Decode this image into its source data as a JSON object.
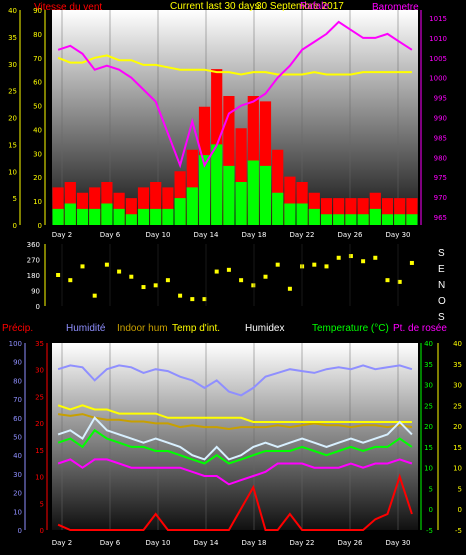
{
  "header": {
    "left": "Vitesse du vent",
    "center_a": "Current last 30 days",
    "center_b": "30 Septembre 2017",
    "center_c": "Rafale",
    "right": "Barometre"
  },
  "compass": [
    "S",
    "E",
    "N",
    "O",
    "S"
  ],
  "bottom_labels": {
    "precip": "Précip.",
    "humidite": "Humidité",
    "indoor_hum": "Indoor hum",
    "temp_int": "Temp d'int.",
    "humidex": "Humidex",
    "temperature": "Temperature (°C)",
    "dewpoint": "Pt. de rosée"
  },
  "colors": {
    "wind": "#00ff00",
    "gust": "#ff0000",
    "baro": "#ff00ff",
    "temp": "#00ff00",
    "dew": "#ff00ff",
    "hum": "#8f8fff",
    "indoor_hum": "#c8a000",
    "indoor_temp": "#ffff00",
    "humidex": "#d8f0ff",
    "precip": "#ff0000",
    "dir": "#ffff00"
  },
  "chart_data": [
    {
      "type": "area",
      "x_ticks": [
        "Day 2",
        "Day 6",
        "Day 10",
        "Day 14",
        "Day 18",
        "Day 22",
        "Day 26",
        "Day 30"
      ],
      "left_axis": {
        "ticks": [
          "0",
          "5",
          "10",
          "15",
          "20",
          "25",
          "30",
          "35",
          "40"
        ],
        "ylim": [
          0,
          40
        ]
      },
      "middle_axis": {
        "ticks": [
          "0",
          "10",
          "20",
          "30",
          "40",
          "50",
          "60",
          "70",
          "80",
          "90"
        ],
        "ylim": [
          0,
          90
        ]
      },
      "right_axis": {
        "ticks": [
          "965",
          "970",
          "975",
          "980",
          "985",
          "990",
          "995",
          "1000",
          "1005",
          "1010",
          "1015"
        ],
        "ylim": [
          963,
          1017
        ]
      },
      "series": [
        {
          "name": "Vitesse du vent",
          "axis": "left",
          "values": [
            3,
            4,
            3,
            3,
            4,
            3,
            2,
            3,
            3,
            3,
            5,
            7,
            13,
            15,
            11,
            8,
            12,
            11,
            6,
            4,
            4,
            3,
            2,
            2,
            2,
            2,
            3,
            2,
            2,
            2
          ]
        },
        {
          "name": "Rafale",
          "axis": "left",
          "values": [
            7,
            8,
            6,
            7,
            8,
            6,
            5,
            7,
            8,
            7,
            10,
            14,
            22,
            29,
            24,
            18,
            24,
            23,
            14,
            9,
            8,
            6,
            5,
            5,
            5,
            5,
            6,
            5,
            5,
            5
          ]
        },
        {
          "name": "Barometre",
          "axis": "right",
          "values": [
            1007,
            1008,
            1006,
            1002,
            1003,
            1002,
            1000,
            997,
            994,
            986,
            978,
            989,
            978,
            983,
            991,
            993,
            994,
            996,
            1000,
            1003,
            1007,
            1009,
            1011,
            1014,
            1012,
            1010,
            1010,
            1011,
            1009,
            1007
          ]
        },
        {
          "name": "Indoor",
          "axis": "middle",
          "values": [
            70,
            68,
            68,
            70,
            71,
            69,
            69,
            67,
            67,
            66,
            65,
            65,
            65,
            64,
            64,
            63,
            64,
            64,
            63,
            63,
            63,
            64,
            63,
            63,
            63,
            64,
            64,
            64,
            64,
            64
          ]
        }
      ]
    },
    {
      "type": "scatter",
      "x_ticks": [
        "Day 2",
        "Day 6",
        "Day 10",
        "Day 14",
        "Day 18",
        "Day 22",
        "Day 26",
        "Day 30"
      ],
      "y_ticks": [
        "0",
        "90",
        "180",
        "270",
        "360"
      ],
      "ylim": [
        0,
        360
      ],
      "series": [
        {
          "name": "Direction",
          "values": [
            180,
            150,
            230,
            60,
            240,
            200,
            170,
            110,
            120,
            150,
            60,
            40,
            40,
            200,
            210,
            150,
            120,
            170,
            240,
            100,
            230,
            240,
            230,
            280,
            290,
            260,
            280,
            150,
            140,
            250
          ]
        }
      ]
    },
    {
      "type": "line",
      "x_ticks": [
        "Day 2",
        "Day 6",
        "Day 10",
        "Day 14",
        "Day 18",
        "Day 22",
        "Day 26",
        "Day 30"
      ],
      "precip_axis": {
        "ticks": [
          "0",
          "10",
          "20",
          "30",
          "40",
          "50",
          "60",
          "70",
          "80",
          "90",
          "100"
        ],
        "ylim": [
          0,
          100
        ]
      },
      "temp_axis": {
        "ticks": [
          "0",
          "5",
          "10",
          "15",
          "20",
          "25",
          "30",
          "35"
        ],
        "ylim": [
          0,
          35
        ]
      },
      "right_axis": {
        "ticks": [
          "-5",
          "0",
          "5",
          "10",
          "15",
          "20",
          "25",
          "30",
          "35",
          "40"
        ],
        "ylim": [
          -5,
          40
        ]
      },
      "series": [
        {
          "name": "Humidité",
          "axis": "precip",
          "values": [
            86,
            88,
            87,
            80,
            86,
            88,
            87,
            84,
            86,
            85,
            82,
            80,
            76,
            80,
            74,
            72,
            76,
            82,
            84,
            86,
            85,
            84,
            86,
            87,
            86,
            88,
            86,
            87,
            88,
            86
          ]
        },
        {
          "name": "Indoor hum",
          "axis": "precip",
          "values": [
            62,
            61,
            62,
            60,
            59,
            59,
            58,
            58,
            57,
            57,
            55,
            56,
            55,
            55,
            54,
            55,
            55,
            55,
            56,
            55,
            56,
            57,
            56,
            56,
            55,
            56,
            56,
            55,
            56,
            55
          ]
        },
        {
          "name": "Temp d'int.",
          "axis": "right",
          "values": [
            25,
            24,
            25,
            24,
            24,
            23,
            23,
            23,
            23,
            22,
            22,
            22,
            22,
            22,
            22,
            22,
            21,
            21,
            21,
            21,
            21,
            21,
            21,
            21,
            21,
            21,
            21,
            21,
            21,
            21
          ]
        },
        {
          "name": "Humidex",
          "axis": "right",
          "values": [
            18,
            19,
            17,
            22,
            19,
            18,
            17,
            16,
            17,
            16,
            15,
            13,
            12,
            15,
            12,
            13,
            15,
            16,
            15,
            16,
            17,
            16,
            15,
            16,
            17,
            16,
            17,
            18,
            21,
            18
          ]
        },
        {
          "name": "Temperature (°C)",
          "axis": "right",
          "values": [
            16,
            17,
            15,
            19,
            17,
            16,
            15,
            15,
            14,
            14,
            13,
            12,
            11,
            13,
            11,
            12,
            13,
            14,
            14,
            14,
            15,
            14,
            13,
            14,
            15,
            14,
            15,
            15,
            17,
            15
          ]
        },
        {
          "name": "Pt. de rosée",
          "axis": "right",
          "values": [
            11,
            12,
            10,
            12,
            12,
            11,
            10,
            10,
            10,
            10,
            10,
            9,
            8,
            8,
            6,
            7,
            8,
            9,
            11,
            11,
            11,
            10,
            10,
            10,
            11,
            10,
            11,
            11,
            12,
            11
          ]
        },
        {
          "name": "Précip.",
          "axis": "temp",
          "values": [
            1,
            0,
            0,
            0,
            0,
            0,
            0,
            0,
            3,
            0,
            0,
            0,
            0,
            0,
            0,
            4,
            8,
            0,
            0,
            3,
            0,
            0,
            0,
            0,
            0,
            0,
            2,
            3,
            10,
            3
          ]
        }
      ]
    }
  ]
}
